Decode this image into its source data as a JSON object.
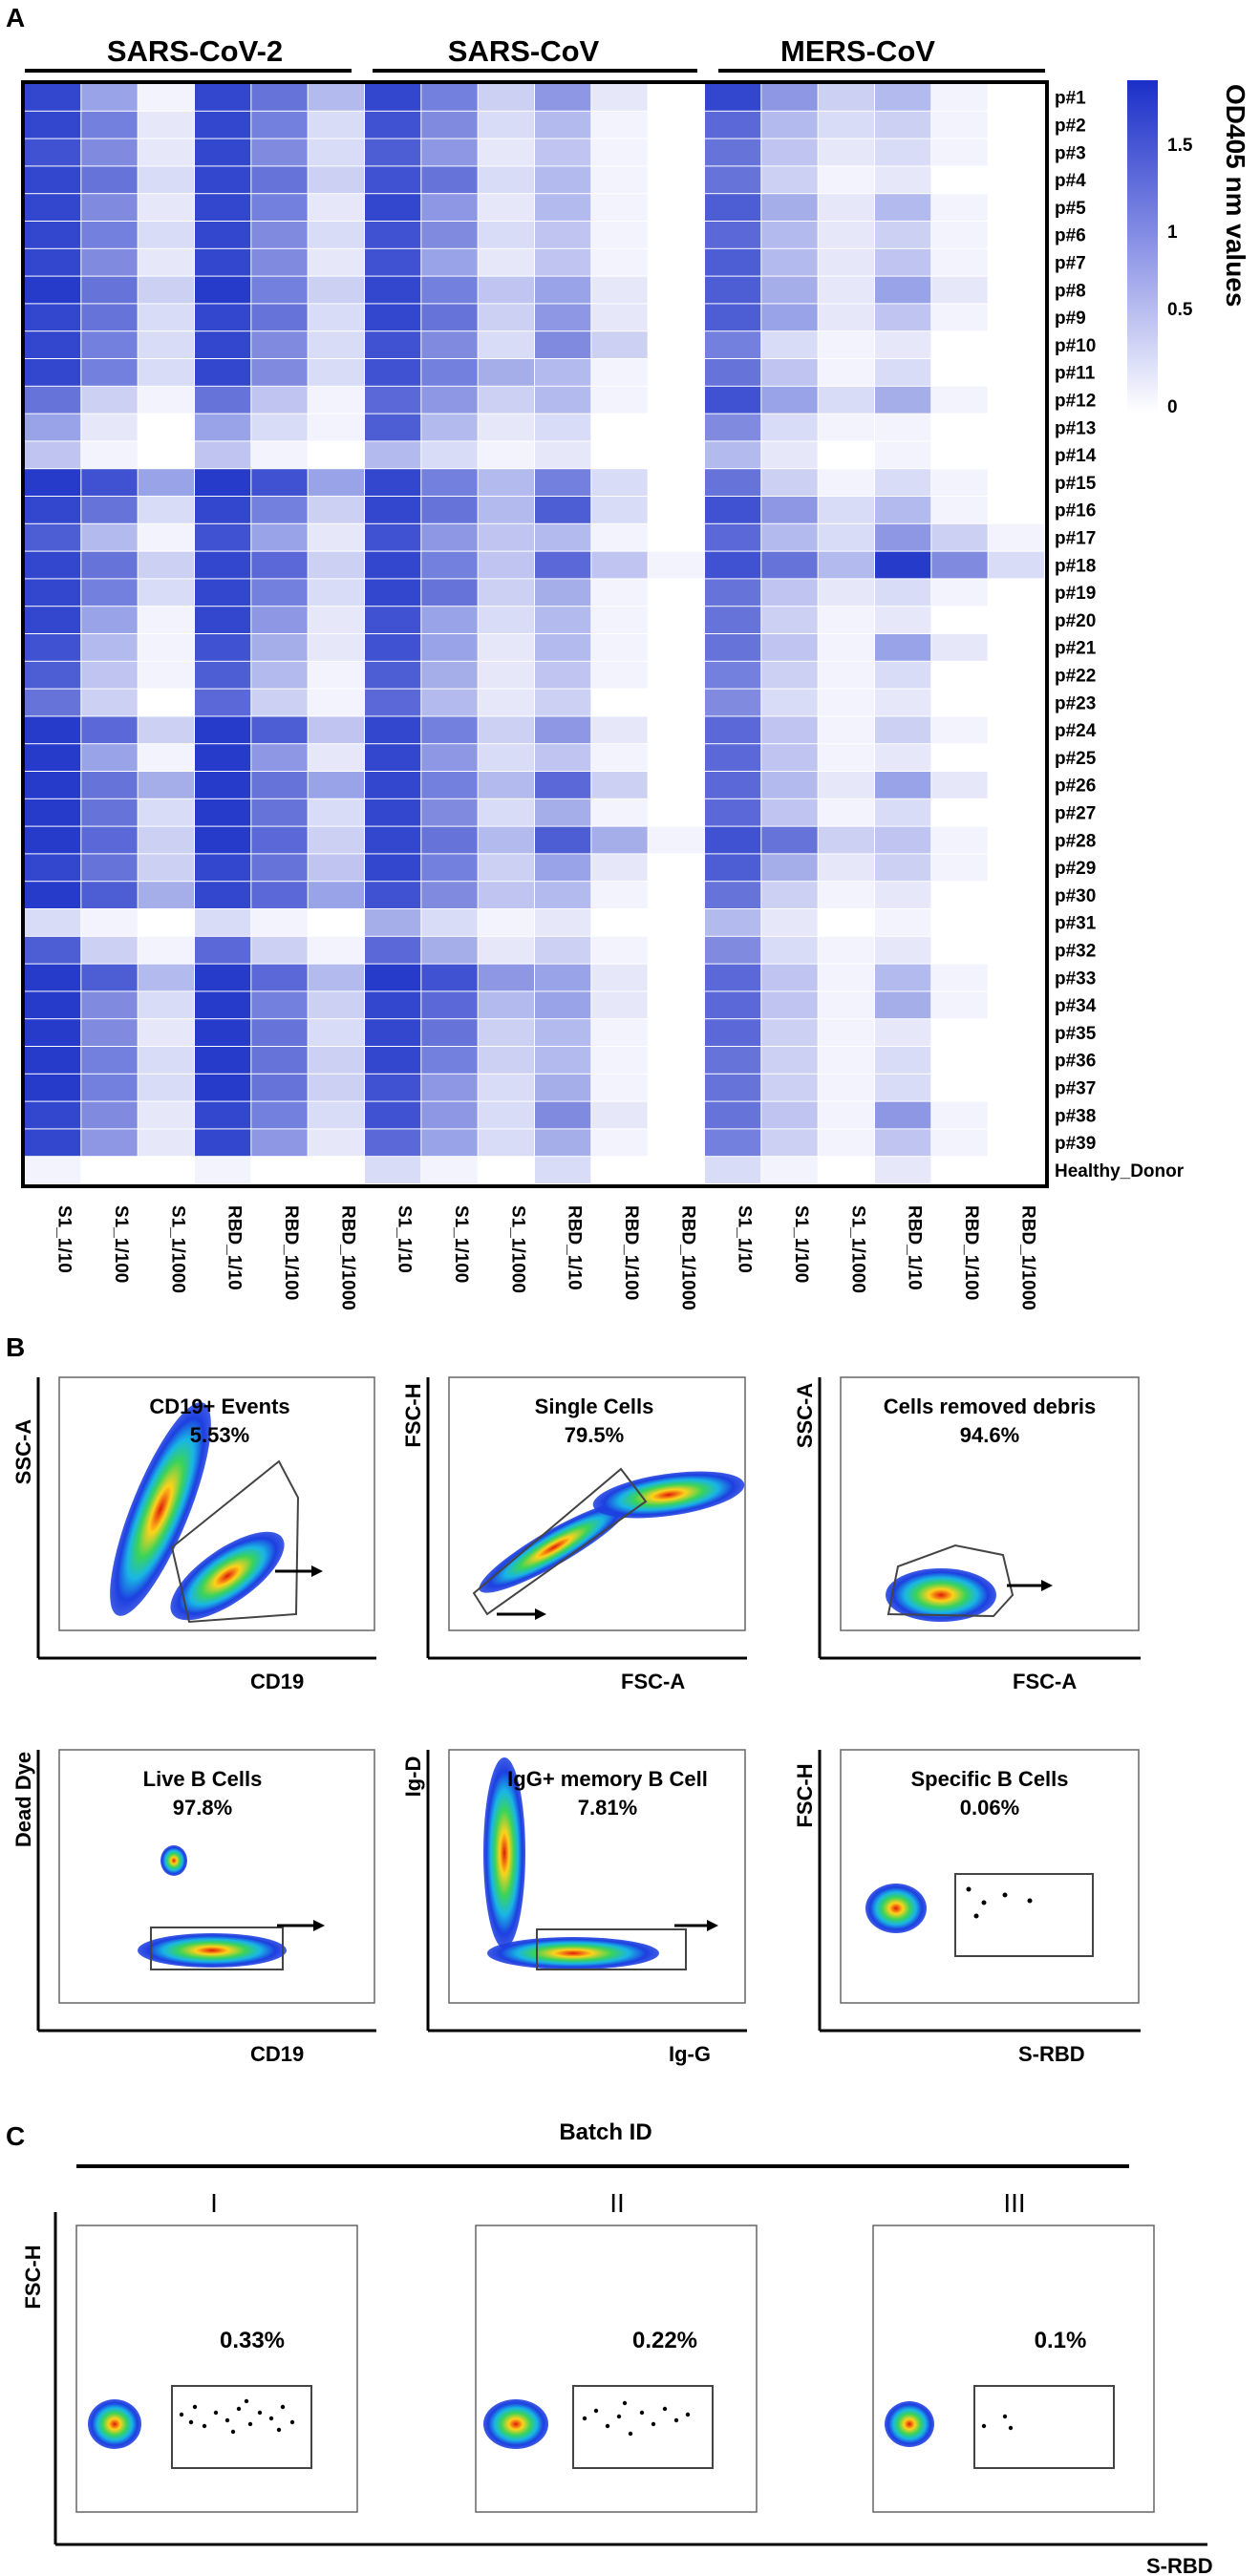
{
  "panel_labels": {
    "a": "A",
    "b": "B",
    "c": "C"
  },
  "heatmap": {
    "groups": [
      "SARS-CoV-2",
      "SARS-CoV",
      "MERS-CoV"
    ],
    "columns": [
      "S1_1/10",
      "S1_1/100",
      "S1_1/1000",
      "RBD_1/10",
      "RBD_1/100",
      "RBD_1/1000",
      "S1_1/10",
      "S1_1/100",
      "S1_1/1000",
      "RBD_1/10",
      "RBD_1/100",
      "RBD_1/1000",
      "S1_1/10",
      "S1_1/100",
      "S1_1/1000",
      "RBD_1/10",
      "RBD_1/100",
      "RBD_1/1000"
    ],
    "rows": [
      "p#1",
      "p#2",
      "p#3",
      "p#4",
      "p#5",
      "p#6",
      "p#7",
      "p#8",
      "p#9",
      "p#10",
      "p#11",
      "p#12",
      "p#13",
      "p#14",
      "p#15",
      "p#16",
      "p#17",
      "p#18",
      "p#19",
      "p#20",
      "p#21",
      "p#22",
      "p#23",
      "p#24",
      "p#25",
      "p#26",
      "p#27",
      "p#28",
      "p#29",
      "p#30",
      "p#31",
      "p#32",
      "p#33",
      "p#34",
      "p#35",
      "p#36",
      "p#37",
      "p#38",
      "p#39",
      "Healthy_Donor"
    ],
    "colorbar": {
      "title": "OD405 nm values",
      "ticks": [
        "1.5",
        "1",
        "0.5",
        "0"
      ],
      "color_high": "#1a2fc8",
      "color_low": "#ffffff"
    }
  },
  "chart_data": {
    "type": "heatmap",
    "title": "",
    "value_label": "OD405 nm values",
    "range": [
      0,
      1.8
    ],
    "rows": [
      "p#1",
      "p#2",
      "p#3",
      "p#4",
      "p#5",
      "p#6",
      "p#7",
      "p#8",
      "p#9",
      "p#10",
      "p#11",
      "p#12",
      "p#13",
      "p#14",
      "p#15",
      "p#16",
      "p#17",
      "p#18",
      "p#19",
      "p#20",
      "p#21",
      "p#22",
      "p#23",
      "p#24",
      "p#25",
      "p#26",
      "p#27",
      "p#28",
      "p#29",
      "p#30",
      "p#31",
      "p#32",
      "p#33",
      "p#34",
      "p#35",
      "p#36",
      "p#37",
      "p#38",
      "p#39",
      "Healthy_Donor"
    ],
    "values": [
      [
        1.6,
        0.8,
        0.1,
        1.6,
        1.2,
        0.6,
        1.6,
        1.1,
        0.4,
        0.9,
        0.2,
        0.0,
        1.6,
        0.9,
        0.4,
        0.6,
        0.1,
        0.0
      ],
      [
        1.6,
        1.1,
        0.2,
        1.6,
        1.1,
        0.3,
        1.5,
        1.0,
        0.3,
        0.6,
        0.1,
        0.0,
        1.3,
        0.6,
        0.3,
        0.4,
        0.1,
        0.0
      ],
      [
        1.5,
        1.0,
        0.2,
        1.6,
        1.0,
        0.3,
        1.4,
        0.9,
        0.2,
        0.5,
        0.1,
        0.0,
        1.2,
        0.5,
        0.2,
        0.3,
        0.1,
        0.0
      ],
      [
        1.6,
        1.2,
        0.3,
        1.6,
        1.2,
        0.4,
        1.5,
        1.2,
        0.3,
        0.6,
        0.1,
        0.0,
        1.2,
        0.4,
        0.1,
        0.2,
        0.0,
        0.0
      ],
      [
        1.6,
        1.0,
        0.2,
        1.6,
        1.1,
        0.2,
        1.6,
        0.9,
        0.2,
        0.6,
        0.1,
        0.0,
        1.4,
        0.7,
        0.2,
        0.6,
        0.1,
        0.0
      ],
      [
        1.6,
        1.1,
        0.3,
        1.6,
        1.0,
        0.3,
        1.5,
        1.0,
        0.3,
        0.5,
        0.1,
        0.0,
        1.3,
        0.6,
        0.2,
        0.4,
        0.1,
        0.0
      ],
      [
        1.6,
        1.0,
        0.2,
        1.6,
        1.0,
        0.2,
        1.5,
        0.8,
        0.2,
        0.5,
        0.1,
        0.0,
        1.4,
        0.6,
        0.2,
        0.5,
        0.1,
        0.0
      ],
      [
        1.7,
        1.2,
        0.4,
        1.7,
        1.1,
        0.4,
        1.6,
        1.1,
        0.5,
        0.8,
        0.2,
        0.0,
        1.4,
        0.7,
        0.2,
        0.8,
        0.2,
        0.0
      ],
      [
        1.6,
        1.2,
        0.3,
        1.6,
        1.2,
        0.3,
        1.6,
        1.2,
        0.4,
        0.9,
        0.2,
        0.0,
        1.4,
        0.8,
        0.2,
        0.5,
        0.1,
        0.0
      ],
      [
        1.6,
        1.1,
        0.3,
        1.6,
        1.0,
        0.3,
        1.5,
        1.0,
        0.3,
        1.0,
        0.4,
        0.0,
        1.1,
        0.3,
        0.1,
        0.2,
        0.0,
        0.0
      ],
      [
        1.6,
        1.1,
        0.3,
        1.6,
        1.0,
        0.3,
        1.5,
        1.1,
        0.7,
        0.6,
        0.1,
        0.0,
        1.2,
        0.5,
        0.1,
        0.3,
        0.0,
        0.0
      ],
      [
        1.2,
        0.4,
        0.1,
        1.2,
        0.5,
        0.1,
        1.3,
        0.9,
        0.4,
        0.6,
        0.1,
        0.0,
        1.5,
        0.8,
        0.3,
        0.7,
        0.1,
        0.0
      ],
      [
        0.8,
        0.2,
        0.0,
        0.8,
        0.3,
        0.1,
        1.4,
        0.6,
        0.2,
        0.3,
        0.0,
        0.0,
        1.0,
        0.3,
        0.1,
        0.1,
        0.0,
        0.0
      ],
      [
        0.5,
        0.1,
        0.0,
        0.5,
        0.1,
        0.0,
        0.6,
        0.3,
        0.1,
        0.2,
        0.0,
        0.0,
        0.6,
        0.2,
        0.0,
        0.1,
        0.0,
        0.0
      ],
      [
        1.7,
        1.5,
        0.8,
        1.7,
        1.5,
        0.8,
        1.6,
        1.1,
        0.6,
        1.1,
        0.3,
        0.0,
        1.2,
        0.4,
        0.1,
        0.3,
        0.1,
        0.0
      ],
      [
        1.6,
        1.2,
        0.3,
        1.6,
        1.1,
        0.4,
        1.6,
        1.2,
        0.6,
        1.4,
        0.3,
        0.0,
        1.5,
        0.9,
        0.3,
        0.6,
        0.1,
        0.0
      ],
      [
        1.4,
        0.6,
        0.1,
        1.5,
        0.8,
        0.2,
        1.5,
        0.9,
        0.5,
        0.6,
        0.1,
        0.0,
        1.3,
        0.6,
        0.3,
        0.9,
        0.4,
        0.1
      ],
      [
        1.6,
        1.2,
        0.4,
        1.6,
        1.3,
        0.4,
        1.6,
        1.1,
        0.5,
        1.3,
        0.5,
        0.1,
        1.5,
        1.2,
        0.6,
        1.7,
        1.0,
        0.3
      ],
      [
        1.6,
        1.1,
        0.3,
        1.6,
        1.1,
        0.3,
        1.6,
        1.2,
        0.4,
        0.7,
        0.1,
        0.0,
        1.2,
        0.5,
        0.2,
        0.3,
        0.1,
        0.0
      ],
      [
        1.6,
        0.8,
        0.1,
        1.6,
        0.9,
        0.2,
        1.5,
        0.8,
        0.3,
        0.6,
        0.1,
        0.0,
        1.2,
        0.4,
        0.1,
        0.2,
        0.0,
        0.0
      ],
      [
        1.5,
        0.6,
        0.1,
        1.5,
        0.7,
        0.2,
        1.5,
        0.8,
        0.2,
        0.6,
        0.1,
        0.0,
        1.2,
        0.5,
        0.1,
        0.8,
        0.2,
        0.0
      ],
      [
        1.4,
        0.5,
        0.1,
        1.4,
        0.6,
        0.1,
        1.4,
        0.7,
        0.2,
        0.5,
        0.1,
        0.0,
        1.1,
        0.4,
        0.1,
        0.3,
        0.0,
        0.0
      ],
      [
        1.2,
        0.4,
        0.0,
        1.3,
        0.4,
        0.1,
        1.3,
        0.6,
        0.2,
        0.4,
        0.0,
        0.0,
        1.0,
        0.3,
        0.1,
        0.2,
        0.0,
        0.0
      ],
      [
        1.7,
        1.3,
        0.4,
        1.7,
        1.4,
        0.5,
        1.6,
        1.1,
        0.4,
        0.9,
        0.2,
        0.0,
        1.3,
        0.5,
        0.1,
        0.4,
        0.1,
        0.0
      ],
      [
        1.7,
        0.8,
        0.1,
        1.7,
        0.9,
        0.2,
        1.6,
        0.9,
        0.3,
        0.5,
        0.1,
        0.0,
        1.3,
        0.5,
        0.1,
        0.2,
        0.0,
        0.0
      ],
      [
        1.7,
        1.2,
        0.7,
        1.7,
        1.2,
        0.8,
        1.6,
        1.1,
        0.6,
        1.3,
        0.4,
        0.0,
        1.3,
        0.6,
        0.2,
        0.8,
        0.2,
        0.0
      ],
      [
        1.7,
        1.2,
        0.3,
        1.7,
        1.2,
        0.3,
        1.6,
        1.0,
        0.3,
        0.7,
        0.1,
        0.0,
        1.3,
        0.5,
        0.1,
        0.3,
        0.0,
        0.0
      ],
      [
        1.7,
        1.3,
        0.4,
        1.7,
        1.3,
        0.4,
        1.6,
        1.2,
        0.6,
        1.4,
        0.7,
        0.1,
        1.5,
        1.2,
        0.4,
        0.5,
        0.1,
        0.0
      ],
      [
        1.6,
        1.2,
        0.4,
        1.6,
        1.2,
        0.5,
        1.6,
        1.1,
        0.4,
        0.8,
        0.2,
        0.0,
        1.4,
        0.7,
        0.2,
        0.4,
        0.1,
        0.0
      ],
      [
        1.7,
        1.4,
        0.7,
        1.6,
        1.3,
        0.8,
        1.5,
        1.0,
        0.5,
        0.6,
        0.1,
        0.0,
        1.2,
        0.4,
        0.1,
        0.2,
        0.0,
        0.0
      ],
      [
        0.3,
        0.1,
        0.0,
        0.3,
        0.1,
        0.0,
        0.7,
        0.3,
        0.1,
        0.2,
        0.0,
        0.0,
        0.6,
        0.2,
        0.0,
        0.1,
        0.0,
        0.0
      ],
      [
        1.4,
        0.4,
        0.1,
        1.3,
        0.4,
        0.1,
        1.3,
        0.7,
        0.2,
        0.4,
        0.1,
        0.0,
        1.0,
        0.3,
        0.1,
        0.2,
        0.0,
        0.0
      ],
      [
        1.7,
        1.4,
        0.6,
        1.7,
        1.3,
        0.6,
        1.7,
        1.5,
        0.9,
        0.8,
        0.2,
        0.0,
        1.3,
        0.5,
        0.1,
        0.6,
        0.1,
        0.0
      ],
      [
        1.7,
        1.0,
        0.3,
        1.7,
        1.1,
        0.4,
        1.6,
        1.3,
        0.6,
        0.8,
        0.2,
        0.0,
        1.3,
        0.5,
        0.1,
        0.7,
        0.1,
        0.0
      ],
      [
        1.7,
        1.0,
        0.2,
        1.7,
        1.2,
        0.3,
        1.6,
        1.2,
        0.4,
        0.6,
        0.1,
        0.0,
        1.3,
        0.4,
        0.1,
        0.2,
        0.0,
        0.0
      ],
      [
        1.7,
        1.1,
        0.3,
        1.7,
        1.2,
        0.4,
        1.6,
        1.1,
        0.4,
        0.6,
        0.1,
        0.0,
        1.2,
        0.4,
        0.1,
        0.3,
        0.0,
        0.0
      ],
      [
        1.7,
        1.1,
        0.3,
        1.7,
        1.2,
        0.4,
        1.5,
        0.9,
        0.3,
        0.7,
        0.1,
        0.0,
        1.2,
        0.4,
        0.1,
        0.3,
        0.0,
        0.0
      ],
      [
        1.6,
        1.0,
        0.2,
        1.6,
        1.1,
        0.3,
        1.5,
        0.9,
        0.3,
        1.0,
        0.2,
        0.0,
        1.2,
        0.5,
        0.1,
        0.9,
        0.1,
        0.0
      ],
      [
        1.6,
        0.9,
        0.2,
        1.6,
        0.9,
        0.2,
        1.3,
        0.8,
        0.3,
        0.7,
        0.1,
        0.0,
        1.1,
        0.4,
        0.1,
        0.5,
        0.1,
        0.0
      ],
      [
        0.1,
        0.0,
        0.0,
        0.1,
        0.0,
        0.0,
        0.3,
        0.1,
        0.0,
        0.3,
        0.0,
        0.0,
        0.3,
        0.1,
        0.0,
        0.2,
        0.0,
        0.0
      ]
    ]
  },
  "flow_b": {
    "plots": [
      {
        "gate": "CD19+ Events",
        "pct": "5.53%",
        "ylabel": "SSC-A",
        "xlabel": "CD19"
      },
      {
        "gate": "Single Cells",
        "pct": "79.5%",
        "ylabel": "FSC-H",
        "xlabel": "FSC-A"
      },
      {
        "gate": "Cells removed debris",
        "pct": "94.6%",
        "ylabel": "SSC-A",
        "xlabel": "FSC-A"
      },
      {
        "gate": "Live B Cells",
        "pct": "97.8%",
        "ylabel": "Dead Dye",
        "xlabel": "CD19"
      },
      {
        "gate": "IgG+ memory B Cell",
        "pct": "7.81%",
        "ylabel": "Ig-D",
        "xlabel": "Ig-G"
      },
      {
        "gate": "Specific B Cells",
        "pct": "0.06%",
        "ylabel": "FSC-H",
        "xlabel": "S-RBD"
      }
    ]
  },
  "flow_c": {
    "title": "Batch ID",
    "ylabel": "FSC-H",
    "xlabel": "S-RBD",
    "batches": [
      {
        "id": "I",
        "pct": "0.33%"
      },
      {
        "id": "II",
        "pct": "0.22%"
      },
      {
        "id": "III",
        "pct": "0.1%"
      }
    ]
  }
}
